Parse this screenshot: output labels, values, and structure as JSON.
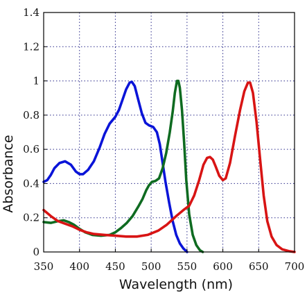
{
  "chart_data": {
    "type": "line",
    "title": "",
    "xlabel": "Wavelength (nm)",
    "ylabel": "Absorbance",
    "xlim": [
      350,
      700
    ],
    "ylim": [
      0,
      1.4
    ],
    "x_ticks": [
      350,
      400,
      450,
      500,
      550,
      600,
      650,
      700
    ],
    "y_ticks": [
      0,
      0.2,
      0.4,
      0.6,
      0.8,
      1,
      1.2,
      1.4
    ],
    "x_tick_labels": [
      "350",
      "400",
      "450",
      "500",
      "550",
      "600",
      "650",
      "700"
    ],
    "y_tick_labels": [
      "0",
      "0.2",
      "0.4",
      "0.6",
      "0.8",
      "1",
      "1.2",
      "1.4"
    ],
    "grid": true,
    "legend": "none",
    "series": [
      {
        "color": "#0a14d8",
        "points": [
          [
            350,
            0.41
          ],
          [
            355,
            0.42
          ],
          [
            360,
            0.45
          ],
          [
            365,
            0.49
          ],
          [
            372,
            0.52
          ],
          [
            380,
            0.53
          ],
          [
            388,
            0.51
          ],
          [
            395,
            0.47
          ],
          [
            400,
            0.455
          ],
          [
            405,
            0.455
          ],
          [
            412,
            0.48
          ],
          [
            420,
            0.53
          ],
          [
            428,
            0.61
          ],
          [
            435,
            0.69
          ],
          [
            442,
            0.75
          ],
          [
            450,
            0.79
          ],
          [
            455,
            0.83
          ],
          [
            460,
            0.89
          ],
          [
            465,
            0.95
          ],
          [
            470,
            0.99
          ],
          [
            473,
            0.995
          ],
          [
            477,
            0.97
          ],
          [
            482,
            0.89
          ],
          [
            487,
            0.81
          ],
          [
            492,
            0.755
          ],
          [
            497,
            0.74
          ],
          [
            503,
            0.73
          ],
          [
            508,
            0.7
          ],
          [
            512,
            0.63
          ],
          [
            516,
            0.52
          ],
          [
            520,
            0.41
          ],
          [
            525,
            0.29
          ],
          [
            530,
            0.18
          ],
          [
            535,
            0.1
          ],
          [
            540,
            0.05
          ],
          [
            545,
            0.02
          ],
          [
            550,
            0.0
          ]
        ]
      },
      {
        "color": "#0f6b21",
        "points": [
          [
            350,
            0.175
          ],
          [
            360,
            0.17
          ],
          [
            370,
            0.18
          ],
          [
            378,
            0.185
          ],
          [
            385,
            0.175
          ],
          [
            392,
            0.16
          ],
          [
            400,
            0.135
          ],
          [
            408,
            0.115
          ],
          [
            418,
            0.1
          ],
          [
            430,
            0.095
          ],
          [
            442,
            0.1
          ],
          [
            450,
            0.115
          ],
          [
            458,
            0.14
          ],
          [
            466,
            0.17
          ],
          [
            474,
            0.21
          ],
          [
            482,
            0.265
          ],
          [
            488,
            0.31
          ],
          [
            493,
            0.36
          ],
          [
            497,
            0.39
          ],
          [
            501,
            0.41
          ],
          [
            506,
            0.415
          ],
          [
            511,
            0.43
          ],
          [
            516,
            0.49
          ],
          [
            521,
            0.58
          ],
          [
            526,
            0.7
          ],
          [
            530,
            0.82
          ],
          [
            533,
            0.93
          ],
          [
            536,
            1.0
          ],
          [
            538,
            1.0
          ],
          [
            540,
            0.96
          ],
          [
            543,
            0.83
          ],
          [
            546,
            0.64
          ],
          [
            549,
            0.42
          ],
          [
            553,
            0.22
          ],
          [
            558,
            0.1
          ],
          [
            563,
            0.04
          ],
          [
            568,
            0.01
          ],
          [
            572,
            0.0
          ]
        ]
      },
      {
        "color": "#d81414",
        "points": [
          [
            350,
            0.245
          ],
          [
            360,
            0.21
          ],
          [
            370,
            0.18
          ],
          [
            380,
            0.165
          ],
          [
            390,
            0.15
          ],
          [
            400,
            0.13
          ],
          [
            410,
            0.115
          ],
          [
            420,
            0.105
          ],
          [
            435,
            0.1
          ],
          [
            450,
            0.095
          ],
          [
            465,
            0.09
          ],
          [
            480,
            0.09
          ],
          [
            495,
            0.1
          ],
          [
            510,
            0.125
          ],
          [
            522,
            0.16
          ],
          [
            535,
            0.21
          ],
          [
            545,
            0.245
          ],
          [
            553,
            0.27
          ],
          [
            560,
            0.33
          ],
          [
            567,
            0.42
          ],
          [
            573,
            0.51
          ],
          [
            578,
            0.55
          ],
          [
            582,
            0.555
          ],
          [
            586,
            0.54
          ],
          [
            590,
            0.5
          ],
          [
            595,
            0.445
          ],
          [
            600,
            0.42
          ],
          [
            604,
            0.43
          ],
          [
            610,
            0.52
          ],
          [
            617,
            0.68
          ],
          [
            624,
            0.83
          ],
          [
            630,
            0.94
          ],
          [
            635,
            0.99
          ],
          [
            638,
            0.99
          ],
          [
            642,
            0.93
          ],
          [
            647,
            0.76
          ],
          [
            652,
            0.54
          ],
          [
            657,
            0.33
          ],
          [
            662,
            0.18
          ],
          [
            668,
            0.09
          ],
          [
            675,
            0.04
          ],
          [
            683,
            0.015
          ],
          [
            692,
            0.005
          ],
          [
            700,
            0.0
          ]
        ]
      }
    ]
  }
}
